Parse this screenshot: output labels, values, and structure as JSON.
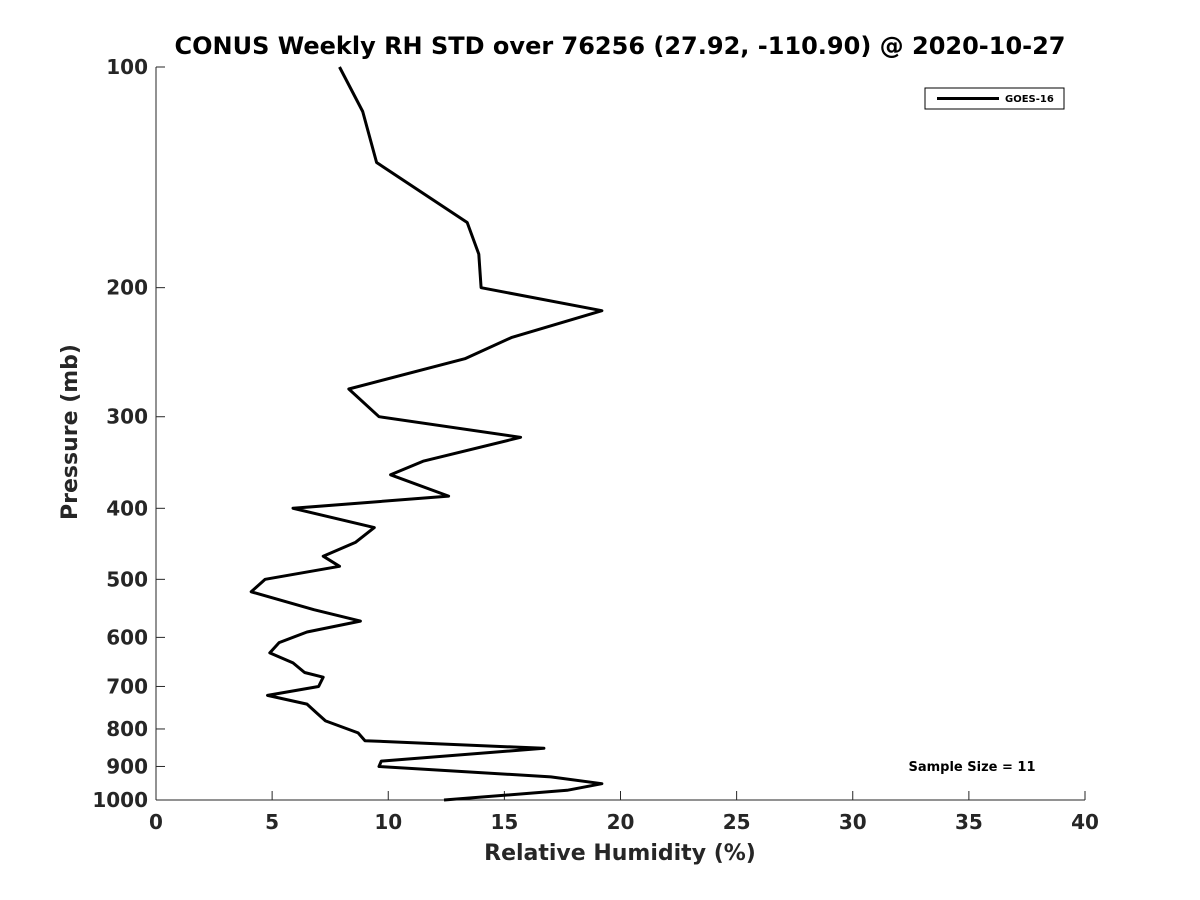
{
  "chart_data": {
    "type": "line",
    "title": "CONUS Weekly RH STD over 76256 (27.92, -110.90) @ 2020-10-27",
    "xlabel": "Relative Humidity (%)",
    "ylabel": "Pressure (mb)",
    "xlim": [
      0,
      40
    ],
    "ylim": [
      100,
      1000
    ],
    "yscale": "log",
    "y_reversed": true,
    "xticks": [
      0,
      5,
      10,
      15,
      20,
      25,
      30,
      35,
      40
    ],
    "yticks": [
      100,
      200,
      300,
      400,
      500,
      600,
      700,
      800,
      900,
      1000
    ],
    "legend": {
      "position": "top-right",
      "entries": [
        "GOES-16"
      ]
    },
    "annotation": "Sample Size = 11",
    "series": [
      {
        "name": "GOES-16",
        "color": "#000000",
        "points": [
          [
            7.9,
            100
          ],
          [
            8.9,
            115
          ],
          [
            9.5,
            135
          ],
          [
            13.4,
            163
          ],
          [
            13.9,
            180
          ],
          [
            14.0,
            200
          ],
          [
            19.2,
            215
          ],
          [
            15.3,
            234
          ],
          [
            13.3,
            250
          ],
          [
            8.3,
            275
          ],
          [
            9.6,
            300
          ],
          [
            15.7,
            320
          ],
          [
            11.5,
            345
          ],
          [
            10.1,
            360
          ],
          [
            12.6,
            385
          ],
          [
            5.9,
            400
          ],
          [
            9.4,
            425
          ],
          [
            8.6,
            445
          ],
          [
            7.2,
            465
          ],
          [
            7.9,
            480
          ],
          [
            4.7,
            500
          ],
          [
            4.1,
            520
          ],
          [
            6.8,
            550
          ],
          [
            8.8,
            570
          ],
          [
            6.5,
            590
          ],
          [
            5.3,
            610
          ],
          [
            4.9,
            630
          ],
          [
            5.9,
            650
          ],
          [
            6.4,
            670
          ],
          [
            7.2,
            680
          ],
          [
            7.0,
            700
          ],
          [
            4.8,
            720
          ],
          [
            6.5,
            740
          ],
          [
            6.9,
            760
          ],
          [
            7.3,
            780
          ],
          [
            8.7,
            810
          ],
          [
            9.0,
            830
          ],
          [
            16.7,
            850
          ],
          [
            9.7,
            885
          ],
          [
            9.6,
            900
          ],
          [
            17.0,
            930
          ],
          [
            19.2,
            950
          ],
          [
            17.7,
            970
          ],
          [
            12.4,
            1000
          ]
        ]
      }
    ]
  }
}
